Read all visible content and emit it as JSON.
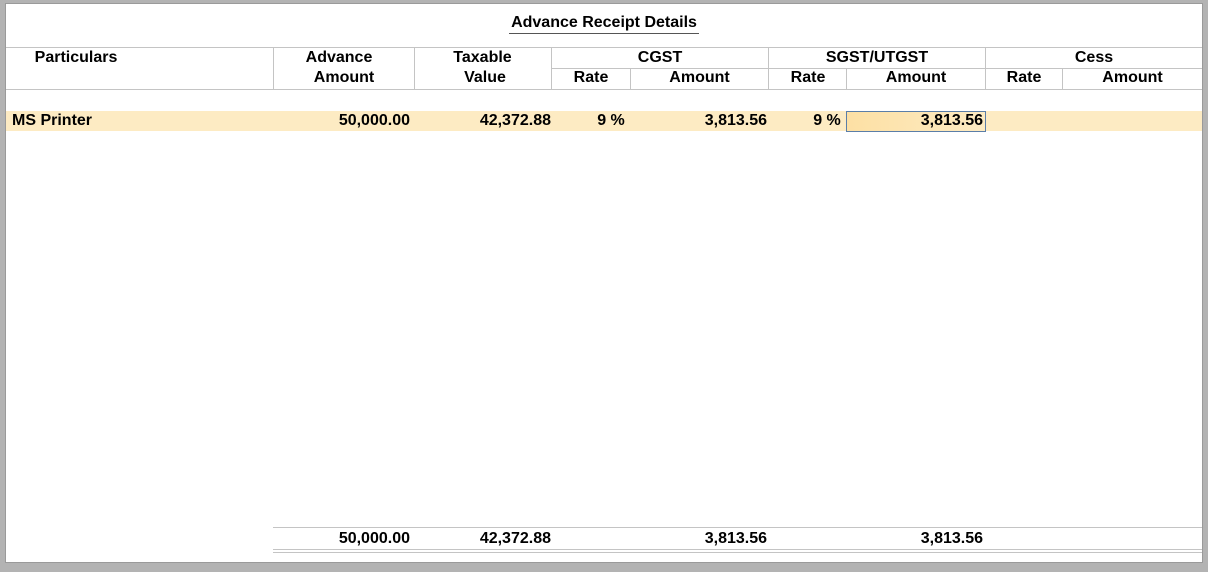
{
  "title": "Advance Receipt Details",
  "headers": {
    "particulars": "Particulars",
    "advance_line1": "Advance",
    "advance_line2": "Amount",
    "taxable_line1": "Taxable",
    "taxable_line2": "Value",
    "cgst": "CGST",
    "sgst": "SGST/UTGST",
    "cess": "Cess",
    "rate": "Rate",
    "amount": "Amount"
  },
  "rows": [
    {
      "particulars": "MS Printer",
      "advance_amount": "50,000.00",
      "taxable_value": "42,372.88",
      "cgst_rate": "9 %",
      "cgst_amount": "3,813.56",
      "sgst_rate": "9 %",
      "sgst_amount": "3,813.56",
      "cess_rate": "",
      "cess_amount": ""
    }
  ],
  "totals": {
    "advance_amount": "50,000.00",
    "taxable_value": "42,372.88",
    "cgst_amount": "3,813.56",
    "sgst_amount": "3,813.56"
  },
  "colors": {
    "row_highlight": "#fdebc3",
    "focus_border": "#5b7ea8",
    "window_bg": "#b3b3b3"
  }
}
